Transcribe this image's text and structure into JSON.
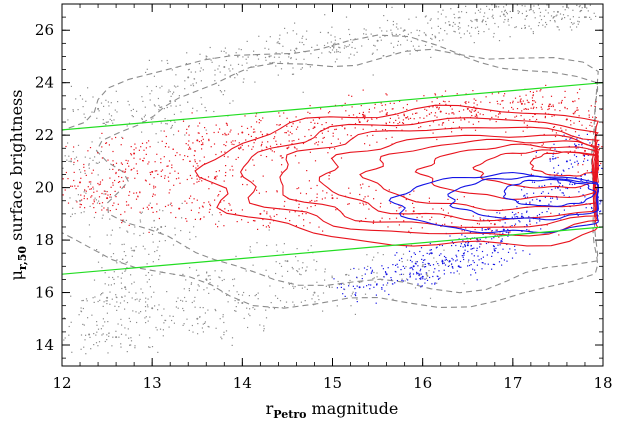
{
  "chart_data": {
    "type": "scatter",
    "xlabel": {
      "main": "r",
      "sub": "Petro",
      "rest": " magnitude"
    },
    "ylabel": {
      "pre": "μ",
      "sub": "r,50",
      "rest": " surface brightness"
    },
    "xlim": [
      12,
      18
    ],
    "ylim": [
      13.2,
      27
    ],
    "xticks": [
      12,
      13,
      14,
      15,
      16,
      17,
      18
    ],
    "yticks": [
      14,
      16,
      18,
      20,
      22,
      24,
      26
    ],
    "grid": false,
    "colors": {
      "gray": "#8c8c8c",
      "red": "#e8141e",
      "blue": "#1414e6",
      "green": "#22dd22"
    },
    "series": [
      {
        "color": "gray",
        "kind": "points",
        "description_only": false,
        "points": [
          [
            12.1,
            21.0
          ],
          [
            12.2,
            19.5
          ],
          [
            12.4,
            23.0
          ],
          [
            12.5,
            15.8
          ],
          [
            12.7,
            16.2
          ],
          [
            12.9,
            22.5
          ],
          [
            13.0,
            15.4
          ],
          [
            13.2,
            23.3
          ],
          [
            13.4,
            24.2
          ],
          [
            13.5,
            15.0
          ],
          [
            13.8,
            24.6
          ],
          [
            14.0,
            15.6
          ],
          [
            14.3,
            25.0
          ],
          [
            14.6,
            25.3
          ],
          [
            14.8,
            16.0
          ],
          [
            15.0,
            25.4
          ],
          [
            15.3,
            16.4
          ],
          [
            15.5,
            25.6
          ],
          [
            15.8,
            26.0
          ],
          [
            16.0,
            17.0
          ],
          [
            16.3,
            26.2
          ],
          [
            16.6,
            26.4
          ],
          [
            16.9,
            26.6
          ],
          [
            17.2,
            26.8
          ],
          [
            17.5,
            26.7
          ],
          [
            17.8,
            26.5
          ],
          [
            12.3,
            14.4
          ],
          [
            12.6,
            14.3
          ],
          [
            12.8,
            17.6
          ],
          [
            13.1,
            18.5
          ],
          [
            13.6,
            16.5
          ],
          [
            14.5,
            17.2
          ]
        ]
      },
      {
        "color": "red",
        "kind": "points",
        "points": [
          [
            12.2,
            20.2
          ],
          [
            12.5,
            19.6
          ],
          [
            12.8,
            21.3
          ],
          [
            13.0,
            20.6
          ],
          [
            13.3,
            19.2
          ],
          [
            13.5,
            21.8
          ],
          [
            13.7,
            20.4
          ],
          [
            14.0,
            22.1
          ],
          [
            14.2,
            19.0
          ],
          [
            14.5,
            21.5
          ],
          [
            14.8,
            22.3
          ],
          [
            15.0,
            19.6
          ],
          [
            15.3,
            22.5
          ],
          [
            15.6,
            22.8
          ],
          [
            15.9,
            19.1
          ],
          [
            16.2,
            22.9
          ],
          [
            16.5,
            23.0
          ],
          [
            16.8,
            18.6
          ],
          [
            17.1,
            23.2
          ],
          [
            17.4,
            23.1
          ],
          [
            17.6,
            22.6
          ],
          [
            17.8,
            21.4
          ]
        ]
      },
      {
        "color": "blue",
        "kind": "points",
        "points": [
          [
            15.3,
            16.2
          ],
          [
            15.6,
            16.7
          ],
          [
            15.9,
            17.0
          ],
          [
            16.1,
            17.5
          ],
          [
            16.3,
            17.2
          ],
          [
            16.5,
            17.8
          ],
          [
            16.7,
            18.1
          ],
          [
            16.9,
            18.4
          ],
          [
            17.1,
            18.9
          ],
          [
            17.3,
            19.5
          ],
          [
            17.5,
            20.0
          ],
          [
            17.6,
            21.0
          ],
          [
            17.7,
            21.6
          ],
          [
            17.8,
            20.5
          ],
          [
            17.9,
            19.4
          ],
          [
            16.0,
            16.6
          ],
          [
            16.4,
            17.0
          ],
          [
            16.8,
            17.6
          ]
        ]
      },
      {
        "color": "green",
        "kind": "line",
        "points": [
          [
            12,
            22.2
          ],
          [
            18,
            24.0
          ]
        ]
      },
      {
        "color": "green",
        "kind": "line",
        "points": [
          [
            12,
            16.7
          ],
          [
            18,
            18.5
          ]
        ]
      },
      {
        "color": "red",
        "kind": "contours",
        "contours": [
          {
            "cx": 16.4,
            "cy": 20.4,
            "rx": 2.8,
            "ry": 2.6
          },
          {
            "cx": 16.5,
            "cy": 20.4,
            "rx": 2.5,
            "ry": 2.2
          },
          {
            "cx": 16.6,
            "cy": 20.4,
            "rx": 2.2,
            "ry": 1.9
          },
          {
            "cx": 16.8,
            "cy": 20.4,
            "rx": 1.9,
            "ry": 1.6
          },
          {
            "cx": 17.0,
            "cy": 20.5,
            "rx": 1.6,
            "ry": 1.3
          },
          {
            "cx": 17.2,
            "cy": 20.6,
            "rx": 1.2,
            "ry": 1.0
          },
          {
            "cx": 17.4,
            "cy": 20.7,
            "rx": 0.8,
            "ry": 0.7
          },
          {
            "cx": 17.6,
            "cy": 20.9,
            "rx": 0.4,
            "ry": 0.45
          }
        ]
      },
      {
        "color": "blue",
        "kind": "contours",
        "contours": [
          {
            "cx": 17.0,
            "cy": 19.4,
            "rx": 1.3,
            "ry": 1.1
          },
          {
            "cx": 17.2,
            "cy": 19.6,
            "rx": 0.9,
            "ry": 0.8
          },
          {
            "cx": 17.4,
            "cy": 19.8,
            "rx": 0.5,
            "ry": 0.5
          }
        ]
      },
      {
        "color": "gray",
        "kind": "contours",
        "dashed": true,
        "contours": [
          {
            "cx": 15.5,
            "cy": 20.5,
            "rx": 3.8,
            "ry": 5.0
          },
          {
            "cx": 15.8,
            "cy": 20.6,
            "rx": 3.3,
            "ry": 4.4
          }
        ]
      }
    ]
  }
}
